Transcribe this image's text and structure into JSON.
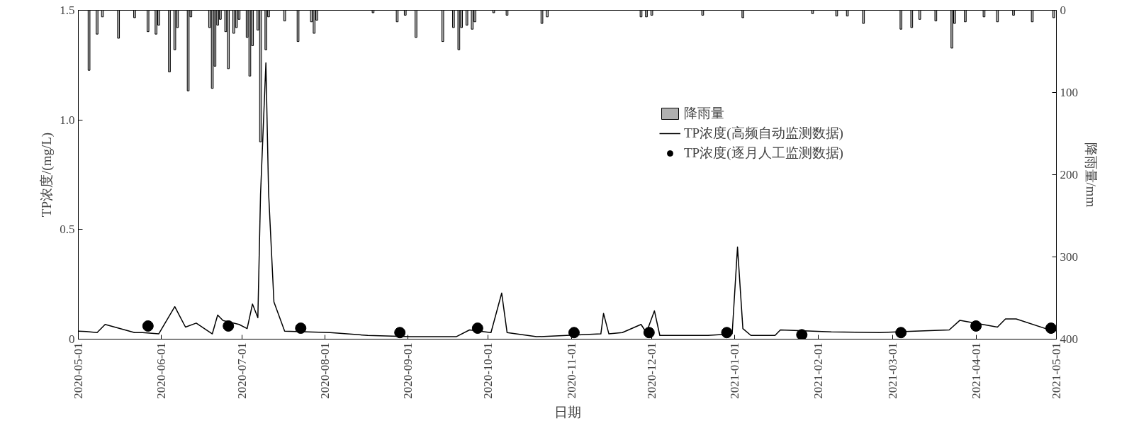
{
  "chart_data": {
    "type": "line",
    "xlabel": "日期",
    "ylabel": "TP浓度/(mg/L)",
    "y2label": "降雨量/mm",
    "xlim": [
      "2020-05-01",
      "2021-05-01"
    ],
    "xticks": [
      {
        "value": "2020-05-01",
        "label": "2020-05-01"
      },
      {
        "value": "2020-06-01",
        "label": "2020-06-01"
      },
      {
        "value": "2020-07-01",
        "label": "2020-07-01"
      },
      {
        "value": "2020-08-01",
        "label": "2020-08-01"
      },
      {
        "value": "2020-09-01",
        "label": "2020-09-01"
      },
      {
        "value": "2020-10-01",
        "label": "2020-10-01"
      },
      {
        "value": "2020-11-01",
        "label": "2020-11-01"
      },
      {
        "value": "2020-12-01",
        "label": "2020-12-01"
      },
      {
        "value": "2021-01-01",
        "label": "2021-01-01"
      },
      {
        "value": "2021-02-01",
        "label": "2021-02-01"
      },
      {
        "value": "2021-03-01",
        "label": "2021-03-01"
      },
      {
        "value": "2021-04-01",
        "label": "2021-04-01"
      },
      {
        "value": "2021-05-01",
        "label": "2021-05-01"
      }
    ],
    "ylim": [
      0,
      1.5
    ],
    "yticks": [
      0,
      0.5,
      {
        "value": 1,
        "label": "1.0"
      },
      1.5
    ],
    "y2lim": [
      400,
      0
    ],
    "y2ticks": [
      0,
      100,
      200,
      300,
      400
    ],
    "legend": "top right",
    "grid": false,
    "series": [
      {
        "name": "降雨量",
        "type": "bar",
        "axis": "y2",
        "color": "#b0b0b0",
        "x": [
          "2020-05-05",
          "2020-05-08",
          "2020-05-10",
          "2020-05-16",
          "2020-05-22",
          "2020-05-27",
          "2020-05-30",
          "2020-05-31",
          "2020-06-04",
          "2020-06-06",
          "2020-06-07",
          "2020-06-11",
          "2020-06-12",
          "2020-06-19",
          "2020-06-20",
          "2020-06-21",
          "2020-06-22",
          "2020-06-23",
          "2020-06-25",
          "2020-06-26",
          "2020-06-28",
          "2020-06-29",
          "2020-06-30",
          "2020-07-03",
          "2020-07-04",
          "2020-07-05",
          "2020-07-07",
          "2020-07-08",
          "2020-07-10",
          "2020-07-11",
          "2020-07-17",
          "2020-07-22",
          "2020-07-27",
          "2020-07-28",
          "2020-07-29",
          "2020-08-19",
          "2020-08-28",
          "2020-08-31",
          "2020-09-04",
          "2020-09-14",
          "2020-09-18",
          "2020-09-20",
          "2020-09-21",
          "2020-09-23",
          "2020-09-25",
          "2020-09-26",
          "2020-10-03",
          "2020-10-08",
          "2020-10-21",
          "2020-10-23",
          "2020-11-27",
          "2020-11-29",
          "2020-12-01",
          "2020-12-20",
          "2021-01-04",
          "2021-01-30",
          "2021-02-08",
          "2021-02-12",
          "2021-02-18",
          "2021-03-04",
          "2021-03-08",
          "2021-03-11",
          "2021-03-17",
          "2021-03-23",
          "2021-03-24",
          "2021-03-28",
          "2021-04-04",
          "2021-04-09",
          "2021-04-15",
          "2021-04-22",
          "2021-04-30"
        ],
        "values": [
          73,
          29,
          8,
          34,
          9,
          26,
          29,
          18,
          75,
          48,
          21,
          98,
          8,
          21,
          95,
          68,
          18,
          11,
          26,
          71,
          28,
          21,
          11,
          33,
          80,
          43,
          24,
          160,
          48,
          8,
          13,
          38,
          14,
          28,
          12,
          3,
          14,
          6,
          33,
          38,
          21,
          48,
          21,
          18,
          23,
          14,
          3,
          6,
          16,
          8,
          8,
          8,
          6,
          6,
          9,
          4,
          7,
          7,
          16,
          23,
          21,
          11,
          13,
          46,
          16,
          14,
          8,
          14,
          6,
          14,
          9
        ]
      },
      {
        "name": "TP浓度(高频自动监测数据)",
        "color": "#000000",
        "line_style": "solid",
        "x": [
          "2020-05-01",
          "2020-05-04",
          "2020-05-08",
          "2020-05-11",
          "2020-05-22",
          "2020-05-25",
          "2020-05-31",
          "2020-06-06",
          "2020-06-10",
          "2020-06-14",
          "2020-06-20",
          "2020-06-22",
          "2020-06-24",
          "2020-06-30",
          "2020-07-03",
          "2020-07-05",
          "2020-07-07",
          "2020-07-08",
          "2020-07-10",
          "2020-07-11",
          "2020-07-13",
          "2020-07-17",
          "2020-08-03",
          "2020-08-17",
          "2020-09-02",
          "2020-09-19",
          "2020-09-24",
          "2020-10-02",
          "2020-10-06",
          "2020-10-08",
          "2020-10-19",
          "2020-11-12",
          "2020-11-13",
          "2020-11-15",
          "2020-11-20",
          "2020-11-27",
          "2020-11-29",
          "2020-12-02",
          "2020-12-04",
          "2020-12-22",
          "2020-12-31",
          "2021-01-02",
          "2021-01-04",
          "2021-01-07",
          "2021-01-16",
          "2021-01-18",
          "2021-02-06",
          "2021-02-24",
          "2021-03-22",
          "2021-03-26",
          "2021-04-09",
          "2021-04-12",
          "2021-04-16",
          "2021-04-30",
          "2021-05-01"
        ],
        "values": [
          0.036,
          0.035,
          0.03,
          0.067,
          0.03,
          0.03,
          0.024,
          0.148,
          0.055,
          0.073,
          0.024,
          0.11,
          0.085,
          0.067,
          0.048,
          0.16,
          0.098,
          0.66,
          1.26,
          0.67,
          0.17,
          0.036,
          0.03,
          0.017,
          0.011,
          0.011,
          0.042,
          0.03,
          0.21,
          0.03,
          0.011,
          0.024,
          0.117,
          0.024,
          0.03,
          0.067,
          0.03,
          0.129,
          0.017,
          0.017,
          0.024,
          0.42,
          0.048,
          0.017,
          0.017,
          0.042,
          0.033,
          0.03,
          0.042,
          0.086,
          0.055,
          0.092,
          0.092,
          0.036,
          0.04
        ]
      },
      {
        "name": "TP浓度(逐月人工监测数据)",
        "type": "scatter",
        "marker": "circle",
        "color": "#000000",
        "x": [
          "2020-05-27",
          "2020-06-26",
          "2020-07-23",
          "2020-08-29",
          "2020-09-27",
          "2020-11-02",
          "2020-11-30",
          "2020-12-29",
          "2021-01-26",
          "2021-03-04",
          "2021-04-01",
          "2021-04-29"
        ],
        "values": [
          0.06,
          0.06,
          0.05,
          0.03,
          0.05,
          0.03,
          0.03,
          0.03,
          0.02,
          0.03,
          0.06,
          0.05
        ]
      }
    ]
  }
}
